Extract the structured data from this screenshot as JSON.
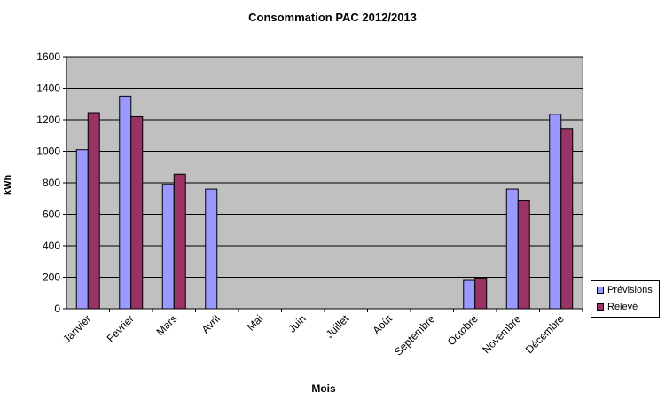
{
  "chart_data": {
    "type": "bar",
    "title": "Consommation PAC 2012/2013",
    "xlabel": "Mois",
    "ylabel": "kWh",
    "ylim": [
      0,
      1600
    ],
    "yticks": [
      "0",
      "200",
      "400",
      "600",
      "800",
      "1000",
      "1200",
      "1400",
      "1600"
    ],
    "grid": true,
    "legend_position": "right",
    "categories": [
      "Janvier",
      "Février",
      "Mars",
      "Avril",
      "Mai",
      "Juin",
      "Juillet",
      "Août",
      "Septembre",
      "Octobre",
      "Novembre",
      "Décembre"
    ],
    "series": [
      {
        "name": "Prévisions",
        "color": "#9999ff",
        "values": [
          1010,
          1350,
          790,
          760,
          null,
          null,
          null,
          null,
          null,
          180,
          760,
          1235
        ]
      },
      {
        "name": "Relevé",
        "color": "#993366",
        "values": [
          1245,
          1220,
          855,
          null,
          null,
          null,
          null,
          null,
          null,
          195,
          690,
          1145
        ]
      }
    ],
    "plot_background": "#c0c0c0"
  }
}
